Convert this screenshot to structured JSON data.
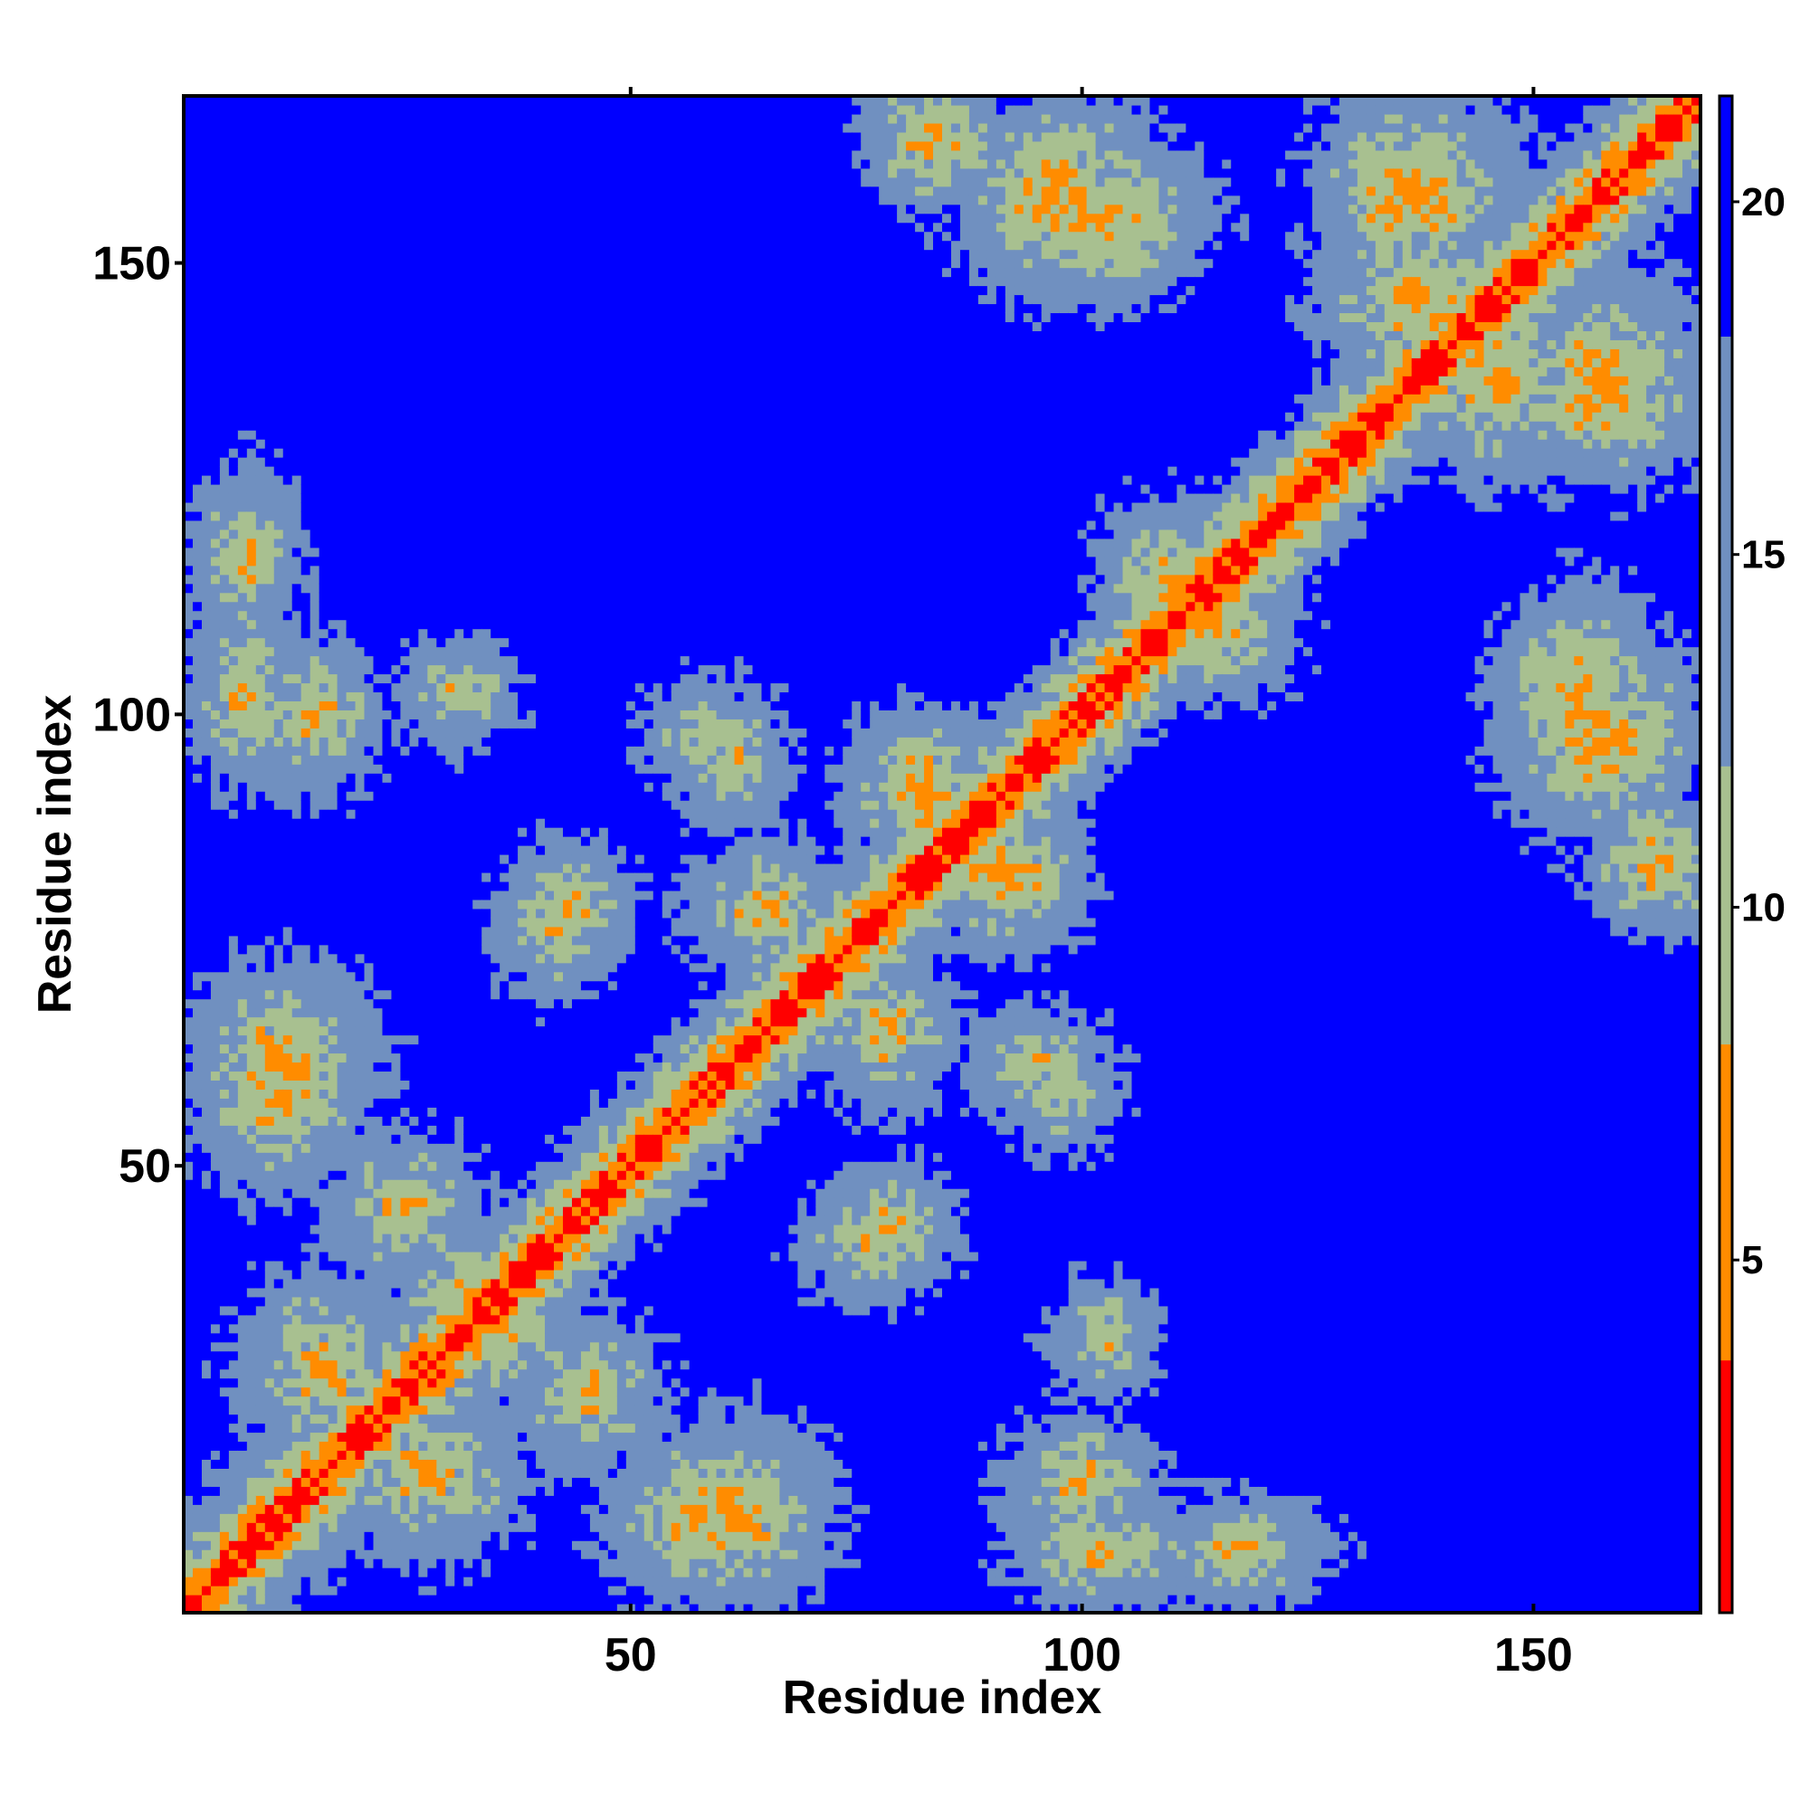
{
  "chart_data": {
    "type": "heatmap",
    "title": "",
    "xlabel": "Residue index",
    "ylabel": "Residue index",
    "n_residues": 168,
    "xlim": [
      0.5,
      168.5
    ],
    "ylim": [
      0.5,
      168.5
    ],
    "x_ticks": [
      50,
      100,
      150
    ],
    "y_ticks": [
      50,
      100,
      150
    ],
    "colorbar": {
      "ticks": [
        5,
        10,
        15,
        20
      ],
      "range": [
        0,
        21.5
      ],
      "colors": {
        "near": "#ff0000",
        "close": "#ff8c00",
        "mid": "#a8c090",
        "far_mid": "#7090c0",
        "far": "#0000ff"
      }
    },
    "contact_bands": [
      {
        "x": [
          4,
          16
        ],
        "y": [
          4,
          16
        ],
        "value": 9
      },
      {
        "x": [
          20,
          35
        ],
        "y": [
          10,
          22
        ],
        "value": 7
      },
      {
        "x": [
          50,
          65
        ],
        "y": [
          5,
          18
        ],
        "value": 7
      },
      {
        "x": [
          20,
          30
        ],
        "y": [
          40,
          50
        ],
        "value": 7
      },
      {
        "x": [
          30,
          40
        ],
        "y": [
          28,
          38
        ],
        "value": 6
      },
      {
        "x": [
          5,
          18
        ],
        "y": [
          55,
          68
        ],
        "value": 6
      },
      {
        "x": [
          12,
          18
        ],
        "y": [
          95,
          105
        ],
        "value": 7
      },
      {
        "x": [
          5,
          10
        ],
        "y": [
          110,
          125
        ],
        "value": 8
      },
      {
        "x": [
          58,
          64
        ],
        "y": [
          90,
          100
        ],
        "value": 8
      },
      {
        "x": [
          40,
          46
        ],
        "y": [
          75,
          82
        ],
        "value": 7
      },
      {
        "x": [
          60,
          70
        ],
        "y": [
          75,
          82
        ],
        "value": 7
      },
      {
        "x": [
          78,
          85
        ],
        "y": [
          88,
          96
        ],
        "value": 6
      },
      {
        "x": [
          88,
          94
        ],
        "y": [
          78,
          86
        ],
        "value": 6
      },
      {
        "x": [
          75,
          82
        ],
        "y": [
          60,
          70
        ],
        "value": 7
      },
      {
        "x": [
          72,
          80
        ],
        "y": [
          38,
          46
        ],
        "value": 8
      },
      {
        "x": [
          95,
          110
        ],
        "y": [
          5,
          10
        ],
        "value": 7
      },
      {
        "x": [
          100,
          105
        ],
        "y": [
          28,
          34
        ],
        "value": 8
      },
      {
        "x": [
          95,
          100
        ],
        "y": [
          55,
          62
        ],
        "value": 8
      },
      {
        "x": [
          80,
          85
        ],
        "y": [
          160,
          168
        ],
        "value": 7
      },
      {
        "x": [
          90,
          105
        ],
        "y": [
          150,
          165
        ],
        "value": 6
      },
      {
        "x": [
          130,
          140
        ],
        "y": [
          150,
          165
        ],
        "value": 6
      },
      {
        "x": [
          140,
          152
        ],
        "y": [
          130,
          145
        ],
        "value": 6
      },
      {
        "x": [
          150,
          165
        ],
        "y": [
          130,
          145
        ],
        "value": 6
      },
      {
        "x": [
          150,
          160
        ],
        "y": [
          95,
          110
        ],
        "value": 6
      },
      {
        "x": [
          110,
          120
        ],
        "y": [
          105,
          115
        ],
        "value": 7
      },
      {
        "x": [
          160,
          168
        ],
        "y": [
          80,
          88
        ],
        "value": 7
      }
    ]
  }
}
